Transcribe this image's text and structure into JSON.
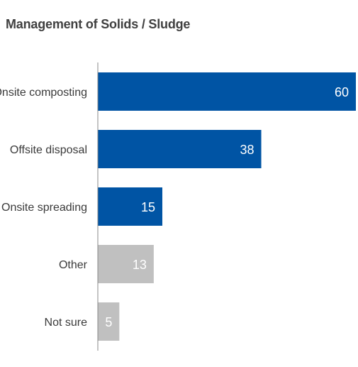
{
  "chart_data": {
    "type": "bar",
    "orientation": "horizontal",
    "title": "Management of Solids / Sludge",
    "categories": [
      "Onsite composting",
      "Offsite disposal",
      "Onsite spreading",
      "Other",
      "Not sure"
    ],
    "values": [
      60,
      38,
      15,
      13,
      5
    ],
    "value_labels": [
      "60",
      "38",
      "15",
      "13",
      "5"
    ],
    "xlim": [
      0,
      60
    ],
    "grid": false,
    "legend": "none",
    "colors": {
      "primary": "#0054a4",
      "secondary": "#c0c0c0",
      "label_on_bar": "#ffffff",
      "category_text": "#3a3a3a",
      "axis": "#888888"
    },
    "bar_color_keys": [
      "primary",
      "primary",
      "primary",
      "secondary",
      "secondary"
    ]
  }
}
